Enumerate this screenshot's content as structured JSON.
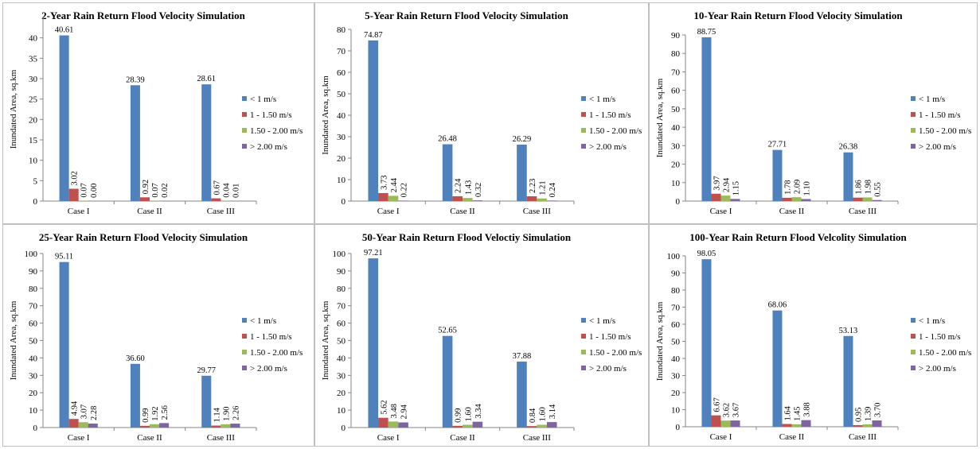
{
  "chart_data": [
    {
      "type": "bar",
      "title": "2-Year Rain Return Flood Velocity Simulation",
      "ylabel": "Inundated Area, sq.km",
      "categories": [
        "Case I",
        "Case II",
        "Case III"
      ],
      "ylim": [
        0,
        45
      ],
      "ytick_step": 5,
      "series": [
        {
          "name": "< 1 m/s",
          "values": [
            40.61,
            28.39,
            28.61
          ]
        },
        {
          "name": "1 - 1.50 m/s",
          "values": [
            3.02,
            0.92,
            0.67
          ]
        },
        {
          "name": "1.50 - 2.00 m/s",
          "values": [
            0.07,
            0.07,
            0.04
          ]
        },
        {
          "name": "> 2.00 m/s",
          "values": [
            0.0,
            0.02,
            0.01
          ]
        }
      ],
      "data_labels": [
        [
          "40.61",
          "3.02",
          "0.07",
          "0.00"
        ],
        [
          "28.39",
          "0.92",
          "0.07",
          "0.02"
        ],
        [
          "28.61",
          "0.67",
          "0.04",
          "0.01"
        ]
      ],
      "ytick_labels": [
        "0",
        "5",
        "10",
        "15",
        "20",
        "25",
        "30",
        "35",
        "40"
      ],
      "legend": "right"
    },
    {
      "type": "bar",
      "title": "5-Year Rain Return Flood Velocity Simulation",
      "ylabel": "Inundated Area, sq.km",
      "categories": [
        "Case I",
        "Case II",
        "Case III"
      ],
      "ylim": [
        0,
        80
      ],
      "ytick_step": 10,
      "series": [
        {
          "name": "< 1 m/s",
          "values": [
            74.87,
            26.48,
            26.29
          ]
        },
        {
          "name": "1 - 1.50 m/s",
          "values": [
            3.73,
            2.24,
            2.23
          ]
        },
        {
          "name": "1.50 - 2.00 m/s",
          "values": [
            2.44,
            1.43,
            1.21
          ]
        },
        {
          "name": "> 2.00 m/s",
          "values": [
            0.22,
            0.32,
            0.24
          ]
        }
      ],
      "data_labels": [
        [
          "74.87",
          "3.73",
          "2.44",
          "0.22"
        ],
        [
          "26.48",
          "2.24",
          "1.43",
          "0.32"
        ],
        [
          "26.29",
          "2.23",
          "1.21",
          "0.24"
        ]
      ],
      "ytick_labels": [
        "0",
        "10",
        "20",
        "30",
        "40",
        "50",
        "60",
        "70",
        "80"
      ],
      "legend": "right"
    },
    {
      "type": "bar",
      "title": "10-Year Rain Return Flood Velocity Simulation",
      "ylabel": "Inundated Area, sq.km",
      "categories": [
        "Case I",
        "Case II",
        "Case III"
      ],
      "ylim": [
        0,
        90
      ],
      "ytick_step": 10,
      "series": [
        {
          "name": "< 1 m/s",
          "values": [
            88.75,
            27.71,
            26.38
          ]
        },
        {
          "name": "1 - 1.50 m/s",
          "values": [
            3.97,
            1.78,
            1.86
          ]
        },
        {
          "name": "1.50 - 2.00 m/s",
          "values": [
            2.94,
            2.09,
            1.98
          ]
        },
        {
          "name": "> 2.00 m/s",
          "values": [
            1.15,
            1.1,
            0.55
          ]
        }
      ],
      "data_labels": [
        [
          "88.75",
          "3.97",
          "2.94",
          "1.15"
        ],
        [
          "27.71",
          "1.78",
          "2.09",
          "1.10"
        ],
        [
          "26.38",
          "1.86",
          "1.98",
          "0.55"
        ]
      ],
      "ytick_labels": [
        "0",
        "10",
        "20",
        "30",
        "40",
        "50",
        "60",
        "70",
        "80",
        "90"
      ],
      "legend": "right"
    },
    {
      "type": "bar",
      "title": "25-Year Rain Return Flood Velocity Simulation",
      "ylabel": "Inundated Area, sq.km",
      "categories": [
        "Case I",
        "Case II",
        "Case III"
      ],
      "ylim": [
        0,
        100
      ],
      "ytick_step": 10,
      "series": [
        {
          "name": "< 1 m/s",
          "values": [
            95.11,
            36.6,
            29.77
          ]
        },
        {
          "name": "1 - 1.50 m/s",
          "values": [
            4.94,
            0.99,
            1.14
          ]
        },
        {
          "name": "1.50 - 2.00 m/s",
          "values": [
            3.07,
            1.92,
            1.9
          ]
        },
        {
          "name": "> 2.00 m/s",
          "values": [
            2.28,
            2.56,
            2.26
          ]
        }
      ],
      "data_labels": [
        [
          "95.11",
          "4.94",
          "3.07",
          "2.28"
        ],
        [
          "36.60",
          "0.99",
          "1.92",
          "2.56"
        ],
        [
          "29.77",
          "1.14",
          "1.90",
          "2.26"
        ]
      ],
      "ytick_labels": [
        "0",
        "10",
        "20",
        "30",
        "40",
        "50",
        "60",
        "70",
        "80",
        "90",
        "100"
      ],
      "legend": "right"
    },
    {
      "type": "bar",
      "title": "50-Year Rain Return Flood Veloctiy Simulation",
      "ylabel": "Inundated Area, sq.km",
      "categories": [
        "Case I",
        "Case II",
        "Case III"
      ],
      "ylim": [
        0,
        100
      ],
      "ytick_step": 10,
      "series": [
        {
          "name": "< 1 m/s",
          "values": [
            97.21,
            52.65,
            37.88
          ]
        },
        {
          "name": "1 - 1.50 m/s",
          "values": [
            5.62,
            0.99,
            0.84
          ]
        },
        {
          "name": "1.50 - 2.00 m/s",
          "values": [
            3.48,
            1.6,
            1.6
          ]
        },
        {
          "name": "> 2.00 m/s",
          "values": [
            2.94,
            3.34,
            3.14
          ]
        }
      ],
      "data_labels": [
        [
          "97.21",
          "5.62",
          "3.48",
          "2.94"
        ],
        [
          "52.65",
          "0.99",
          "1.60",
          "3.34"
        ],
        [
          "37.88",
          "0.84",
          "1.60",
          "3.14"
        ]
      ],
      "ytick_labels": [
        "0",
        "10",
        "20",
        "30",
        "40",
        "50",
        "60",
        "70",
        "80",
        "90",
        "100"
      ],
      "legend": "right"
    },
    {
      "type": "bar",
      "title": "100-Year Rain Return Flood Velcolity Simulation",
      "ylabel": "Inundated Area, sq.km",
      "categories": [
        "Case I",
        "Case II",
        "Case III"
      ],
      "ylim": [
        0,
        100
      ],
      "ytick_step": 10,
      "series": [
        {
          "name": "< 1 m/s",
          "values": [
            98.05,
            68.06,
            53.13
          ]
        },
        {
          "name": "1 - 1.50 m/s",
          "values": [
            6.67,
            1.64,
            0.95
          ]
        },
        {
          "name": "1.50 - 2.00 m/s",
          "values": [
            3.62,
            1.45,
            1.39
          ]
        },
        {
          "name": "> 2.00 m/s",
          "values": [
            3.67,
            3.88,
            3.7
          ]
        }
      ],
      "data_labels": [
        [
          "98.05",
          "6.67",
          "3.62",
          "3.67"
        ],
        [
          "68.06",
          "1.64",
          "1.45",
          "3.88"
        ],
        [
          "53.13",
          "0.95",
          "1.39",
          "3.70"
        ]
      ],
      "ytick_labels": [
        "0",
        "10",
        "20",
        "30",
        "40",
        "50",
        "60",
        "70",
        "80",
        "90",
        "100"
      ],
      "legend": "right"
    }
  ],
  "series_colors": [
    "#4F81BD",
    "#C0504D",
    "#9BBB59",
    "#8064A2"
  ],
  "axis_color": "#868686",
  "grid": false
}
